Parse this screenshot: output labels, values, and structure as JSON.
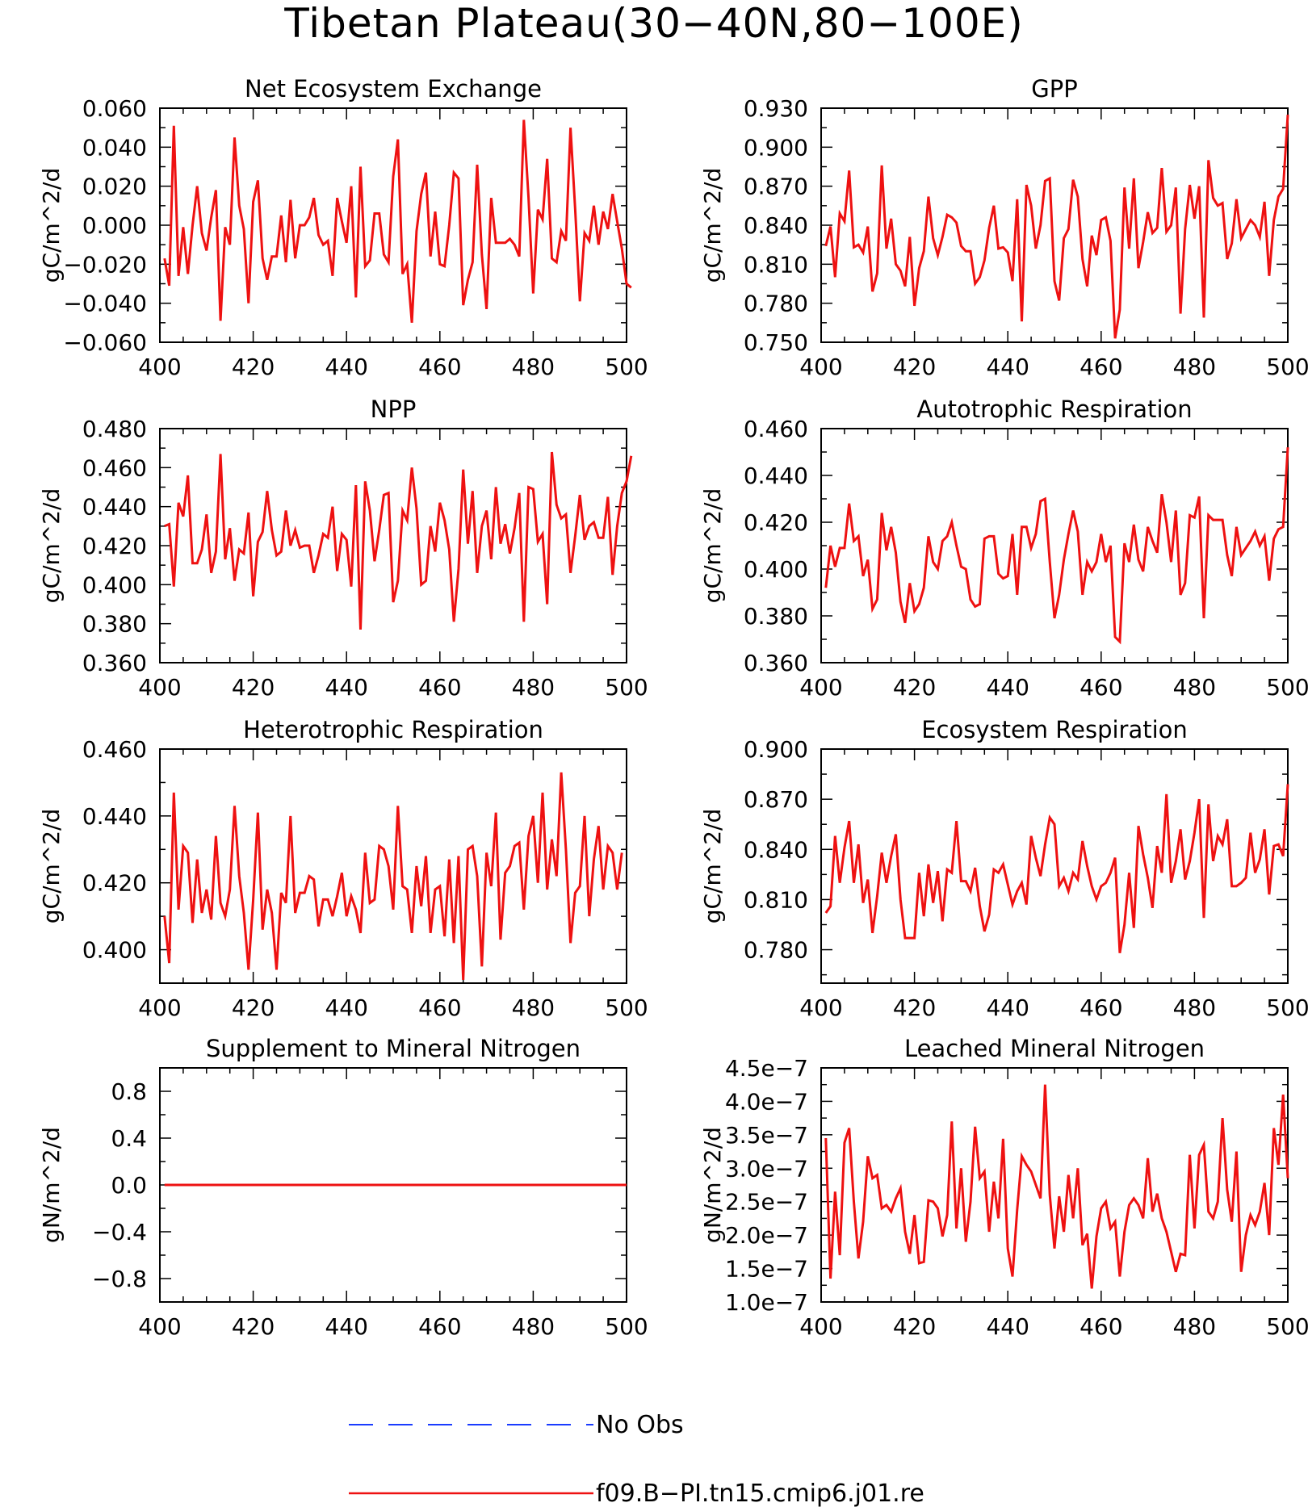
{
  "figure": {
    "title": "Tibetan Plateau(30−40N,80−100E)"
  },
  "legend": [
    {
      "label": "No Obs",
      "color": "#1a3cff",
      "style": "dashed"
    },
    {
      "label": "f09.B−PI.tn15.cmip6.j01.re",
      "color": "#ee1111",
      "style": "solid"
    }
  ],
  "chart_data": [
    {
      "type": "line",
      "title": "Net Ecosystem Exchange",
      "ylabel": "gC/m^2/d",
      "xlim": [
        400,
        500
      ],
      "ylim": [
        -0.06,
        0.06
      ],
      "xticks": [
        "400",
        "420",
        "440",
        "460",
        "480",
        "500"
      ],
      "yticks": [
        "−0.060",
        "−0.040",
        "−0.020",
        "0.000",
        "0.020",
        "0.040",
        "0.060"
      ],
      "x_start": 401,
      "series": [
        {
          "color": "#ee1111",
          "values": [
            -0.017,
            -0.031,
            0.051,
            -0.026,
            -0.001,
            -0.025,
            0.0,
            0.02,
            -0.004,
            -0.013,
            0.004,
            0.018,
            -0.049,
            -0.001,
            -0.01,
            0.045,
            0.01,
            -0.002,
            -0.04,
            0.012,
            0.023,
            -0.017,
            -0.028,
            -0.016,
            -0.016,
            0.005,
            -0.019,
            0.013,
            -0.017,
            0.0,
            0.0,
            0.004,
            0.014,
            -0.005,
            -0.01,
            -0.008,
            -0.026,
            0.014,
            0.002,
            -0.009,
            0.02,
            -0.037,
            0.03,
            -0.021,
            -0.018,
            0.006,
            0.006,
            -0.015,
            -0.019,
            0.025,
            0.044,
            -0.025,
            -0.02,
            -0.05,
            -0.003,
            0.016,
            0.027,
            -0.016,
            0.007,
            -0.02,
            -0.021,
            0.0,
            0.027,
            0.024,
            -0.041,
            -0.028,
            -0.019,
            0.031,
            -0.015,
            -0.043,
            0.014,
            -0.009,
            -0.009,
            -0.009,
            -0.007,
            -0.01,
            -0.016,
            0.054,
            0.014,
            -0.035,
            0.008,
            0.003,
            0.034,
            -0.017,
            -0.019,
            -0.003,
            -0.008,
            0.05,
            0.008,
            -0.039,
            -0.004,
            -0.008,
            0.01,
            -0.01,
            0.007,
            -0.002,
            0.016,
            0.002,
            -0.012,
            -0.03,
            -0.032
          ]
        }
      ]
    },
    {
      "type": "line",
      "title": "GPP",
      "ylabel": "gC/m^2/d",
      "xlim": [
        400,
        500
      ],
      "ylim": [
        0.75,
        0.93
      ],
      "xticks": [
        "400",
        "420",
        "440",
        "460",
        "480",
        "500"
      ],
      "yticks": [
        "0.750",
        "0.780",
        "0.810",
        "0.840",
        "0.870",
        "0.900",
        "0.930"
      ],
      "x_start": 401,
      "series": [
        {
          "color": "#ee1111",
          "values": [
            0.824,
            0.839,
            0.8,
            0.849,
            0.843,
            0.882,
            0.823,
            0.825,
            0.819,
            0.839,
            0.789,
            0.803,
            0.886,
            0.822,
            0.845,
            0.81,
            0.805,
            0.793,
            0.831,
            0.778,
            0.807,
            0.82,
            0.862,
            0.83,
            0.817,
            0.831,
            0.848,
            0.846,
            0.842,
            0.824,
            0.82,
            0.82,
            0.795,
            0.8,
            0.813,
            0.838,
            0.855,
            0.822,
            0.823,
            0.819,
            0.797,
            0.86,
            0.766,
            0.871,
            0.855,
            0.822,
            0.84,
            0.874,
            0.876,
            0.797,
            0.782,
            0.83,
            0.837,
            0.875,
            0.862,
            0.814,
            0.793,
            0.832,
            0.817,
            0.844,
            0.846,
            0.828,
            0.753,
            0.775,
            0.869,
            0.822,
            0.876,
            0.807,
            0.827,
            0.85,
            0.834,
            0.838,
            0.884,
            0.835,
            0.84,
            0.869,
            0.772,
            0.837,
            0.871,
            0.845,
            0.87,
            0.769,
            0.89,
            0.861,
            0.855,
            0.857,
            0.814,
            0.826,
            0.86,
            0.83,
            0.837,
            0.844,
            0.84,
            0.831,
            0.858,
            0.801,
            0.844,
            0.862,
            0.868,
            0.925
          ]
        }
      ]
    },
    {
      "type": "line",
      "title": "NPP",
      "ylabel": "gC/m^2/d",
      "xlim": [
        400,
        500
      ],
      "ylim": [
        0.36,
        0.48
      ],
      "xticks": [
        "400",
        "420",
        "440",
        "460",
        "480",
        "500"
      ],
      "yticks": [
        "0.360",
        "0.380",
        "0.400",
        "0.420",
        "0.440",
        "0.460",
        "0.480"
      ],
      "x_start": 401,
      "series": [
        {
          "color": "#ee1111",
          "values": [
            0.43,
            0.431,
            0.399,
            0.442,
            0.435,
            0.456,
            0.411,
            0.411,
            0.418,
            0.436,
            0.406,
            0.417,
            0.467,
            0.413,
            0.429,
            0.402,
            0.418,
            0.416,
            0.437,
            0.394,
            0.422,
            0.427,
            0.448,
            0.428,
            0.415,
            0.417,
            0.438,
            0.42,
            0.428,
            0.419,
            0.42,
            0.42,
            0.406,
            0.415,
            0.426,
            0.424,
            0.44,
            0.407,
            0.426,
            0.423,
            0.399,
            0.451,
            0.377,
            0.453,
            0.438,
            0.412,
            0.428,
            0.446,
            0.447,
            0.391,
            0.402,
            0.438,
            0.433,
            0.46,
            0.439,
            0.4,
            0.402,
            0.43,
            0.417,
            0.442,
            0.433,
            0.418,
            0.381,
            0.408,
            0.459,
            0.421,
            0.448,
            0.406,
            0.43,
            0.438,
            0.413,
            0.45,
            0.421,
            0.431,
            0.416,
            0.429,
            0.447,
            0.381,
            0.45,
            0.449,
            0.422,
            0.426,
            0.39,
            0.468,
            0.441,
            0.434,
            0.436,
            0.406,
            0.425,
            0.446,
            0.423,
            0.43,
            0.432,
            0.424,
            0.424,
            0.445,
            0.405,
            0.43,
            0.447,
            0.453,
            0.466
          ]
        }
      ]
    },
    {
      "type": "line",
      "title": "Autotrophic Respiration",
      "ylabel": "gC/m^2/d",
      "xlim": [
        400,
        500
      ],
      "ylim": [
        0.36,
        0.46
      ],
      "xticks": [
        "400",
        "420",
        "440",
        "460",
        "480",
        "500"
      ],
      "yticks": [
        "0.360",
        "0.380",
        "0.400",
        "0.420",
        "0.440",
        "0.460"
      ],
      "x_start": 401,
      "series": [
        {
          "color": "#ee1111",
          "values": [
            0.392,
            0.41,
            0.401,
            0.409,
            0.409,
            0.428,
            0.412,
            0.414,
            0.397,
            0.404,
            0.383,
            0.387,
            0.424,
            0.408,
            0.418,
            0.407,
            0.386,
            0.377,
            0.394,
            0.382,
            0.385,
            0.392,
            0.414,
            0.403,
            0.4,
            0.412,
            0.414,
            0.42,
            0.41,
            0.401,
            0.4,
            0.387,
            0.384,
            0.385,
            0.413,
            0.414,
            0.414,
            0.398,
            0.396,
            0.397,
            0.415,
            0.389,
            0.418,
            0.418,
            0.409,
            0.415,
            0.429,
            0.43,
            0.403,
            0.379,
            0.389,
            0.404,
            0.415,
            0.425,
            0.416,
            0.389,
            0.403,
            0.399,
            0.403,
            0.415,
            0.403,
            0.41,
            0.371,
            0.369,
            0.411,
            0.403,
            0.419,
            0.404,
            0.399,
            0.418,
            0.412,
            0.407,
            0.432,
            0.42,
            0.403,
            0.425,
            0.389,
            0.394,
            0.423,
            0.422,
            0.431,
            0.379,
            0.423,
            0.421,
            0.421,
            0.421,
            0.406,
            0.397,
            0.418,
            0.406,
            0.409,
            0.412,
            0.416,
            0.41,
            0.414,
            0.395,
            0.413,
            0.417,
            0.418,
            0.452
          ]
        }
      ]
    },
    {
      "type": "line",
      "title": "Heterotrophic Respiration",
      "ylabel": "gC/m^2/d",
      "xlim": [
        400,
        500
      ],
      "ylim": [
        0.39,
        0.46
      ],
      "xticks": [
        "400",
        "420",
        "440",
        "460",
        "480",
        "500"
      ],
      "yticks": [
        "0.400",
        "0.420",
        "0.440",
        "0.460"
      ],
      "x_start": 401,
      "series": [
        {
          "color": "#ee1111",
          "values": [
            0.41,
            0.396,
            0.447,
            0.412,
            0.431,
            0.429,
            0.408,
            0.427,
            0.411,
            0.418,
            0.409,
            0.434,
            0.414,
            0.41,
            0.418,
            0.443,
            0.422,
            0.411,
            0.394,
            0.415,
            0.441,
            0.406,
            0.418,
            0.411,
            0.394,
            0.417,
            0.414,
            0.44,
            0.411,
            0.417,
            0.417,
            0.422,
            0.421,
            0.407,
            0.415,
            0.415,
            0.41,
            0.416,
            0.423,
            0.41,
            0.416,
            0.412,
            0.405,
            0.429,
            0.414,
            0.415,
            0.431,
            0.43,
            0.425,
            0.412,
            0.443,
            0.419,
            0.418,
            0.405,
            0.425,
            0.413,
            0.428,
            0.405,
            0.418,
            0.419,
            0.404,
            0.427,
            0.402,
            0.428,
            0.391,
            0.43,
            0.431,
            0.422,
            0.395,
            0.429,
            0.419,
            0.441,
            0.403,
            0.423,
            0.425,
            0.431,
            0.432,
            0.412,
            0.434,
            0.44,
            0.42,
            0.447,
            0.418,
            0.433,
            0.422,
            0.453,
            0.43,
            0.402,
            0.417,
            0.419,
            0.44,
            0.41,
            0.427,
            0.437,
            0.418,
            0.431,
            0.429,
            0.418,
            0.429
          ]
        }
      ]
    },
    {
      "type": "line",
      "title": "Ecosystem Respiration",
      "ylabel": "gC/m^2/d",
      "xlim": [
        400,
        500
      ],
      "ylim": [
        0.76,
        0.9
      ],
      "xticks": [
        "400",
        "420",
        "440",
        "460",
        "480",
        "500"
      ],
      "yticks": [
        "0.780",
        "0.810",
        "0.840",
        "0.870",
        "0.900"
      ],
      "x_start": 401,
      "series": [
        {
          "color": "#ee1111",
          "values": [
            0.802,
            0.806,
            0.848,
            0.82,
            0.841,
            0.857,
            0.82,
            0.843,
            0.808,
            0.822,
            0.79,
            0.812,
            0.838,
            0.82,
            0.836,
            0.849,
            0.81,
            0.787,
            0.787,
            0.787,
            0.826,
            0.8,
            0.831,
            0.808,
            0.827,
            0.797,
            0.828,
            0.826,
            0.857,
            0.821,
            0.821,
            0.815,
            0.829,
            0.806,
            0.791,
            0.801,
            0.828,
            0.826,
            0.831,
            0.819,
            0.807,
            0.815,
            0.82,
            0.807,
            0.848,
            0.835,
            0.824,
            0.843,
            0.859,
            0.855,
            0.818,
            0.823,
            0.815,
            0.826,
            0.822,
            0.845,
            0.83,
            0.818,
            0.81,
            0.818,
            0.82,
            0.826,
            0.835,
            0.778,
            0.795,
            0.826,
            0.793,
            0.854,
            0.837,
            0.823,
            0.805,
            0.842,
            0.826,
            0.873,
            0.82,
            0.833,
            0.852,
            0.822,
            0.833,
            0.85,
            0.87,
            0.799,
            0.867,
            0.833,
            0.848,
            0.843,
            0.858,
            0.818,
            0.818,
            0.82,
            0.823,
            0.85,
            0.826,
            0.834,
            0.852,
            0.813,
            0.842,
            0.843,
            0.836,
            0.879
          ]
        }
      ]
    },
    {
      "type": "line",
      "title": "Supplement to Mineral Nitrogen",
      "ylabel": "gN/m^2/d",
      "xlim": [
        400,
        500
      ],
      "ylim": [
        -1.0,
        1.0
      ],
      "xticks": [
        "400",
        "420",
        "440",
        "460",
        "480",
        "500"
      ],
      "yticks": [
        "−0.8",
        "−0.4",
        "0.0",
        "0.4",
        "0.8"
      ],
      "x_start": 401,
      "series": [
        {
          "color": "#ee1111",
          "values": [
            0,
            0,
            0,
            0,
            0,
            0,
            0,
            0,
            0,
            0,
            0,
            0,
            0,
            0,
            0,
            0,
            0,
            0,
            0,
            0,
            0,
            0,
            0,
            0,
            0,
            0,
            0,
            0,
            0,
            0,
            0,
            0,
            0,
            0,
            0,
            0,
            0,
            0,
            0,
            0,
            0,
            0,
            0,
            0,
            0,
            0,
            0,
            0,
            0,
            0,
            0,
            0,
            0,
            0,
            0,
            0,
            0,
            0,
            0,
            0,
            0,
            0,
            0,
            0,
            0,
            0,
            0,
            0,
            0,
            0,
            0,
            0,
            0,
            0,
            0,
            0,
            0,
            0,
            0,
            0,
            0,
            0,
            0,
            0,
            0,
            0,
            0,
            0,
            0,
            0,
            0,
            0,
            0,
            0,
            0,
            0,
            0,
            0,
            0,
            0
          ]
        }
      ]
    },
    {
      "type": "line",
      "title": "Leached Mineral Nitrogen",
      "ylabel": "gN/m^2/d",
      "xlim": [
        400,
        500
      ],
      "ylim": [
        1e-07,
        4.5e-07
      ],
      "xticks": [
        "400",
        "420",
        "440",
        "460",
        "480",
        "500"
      ],
      "yticks": [
        "1.0e−7",
        "1.5e−7",
        "2.0e−7",
        "2.5e−7",
        "3.0e−7",
        "3.5e−7",
        "4.0e−7",
        "4.5e−7"
      ],
      "x_start": 401,
      "series": [
        {
          "color": "#ee1111",
          "values": [
            3.45e-07,
            1.35e-07,
            2.65e-07,
            1.7e-07,
            3.38e-07,
            3.6e-07,
            2.5e-07,
            1.65e-07,
            2.2e-07,
            3.18e-07,
            2.85e-07,
            2.9e-07,
            2.4e-07,
            2.45e-07,
            2.35e-07,
            2.55e-07,
            2.7e-07,
            2.05e-07,
            1.72e-07,
            2.3e-07,
            1.58e-07,
            1.6e-07,
            2.52e-07,
            2.5e-07,
            2.4e-07,
            1.98e-07,
            2.3e-07,
            3.7e-07,
            2.1e-07,
            3e-07,
            1.9e-07,
            2.5e-07,
            3.62e-07,
            2.85e-07,
            2.95e-07,
            2.05e-07,
            2.8e-07,
            2.25e-07,
            3.44e-07,
            1.8e-07,
            1.38e-07,
            2.38e-07,
            3.18e-07,
            3.05e-07,
            2.95e-07,
            2.75e-07,
            2.55e-07,
            4.25e-07,
            2.6e-07,
            1.8e-07,
            2.58e-07,
            2.05e-07,
            2.9e-07,
            2.25e-07,
            3e-07,
            1.85e-07,
            2.02e-07,
            1.2e-07,
            1.98e-07,
            2.4e-07,
            2.5e-07,
            2.1e-07,
            2.2e-07,
            1.38e-07,
            2.05e-07,
            2.45e-07,
            2.55e-07,
            2.45e-07,
            2.25e-07,
            3.15e-07,
            2.35e-07,
            2.62e-07,
            2.25e-07,
            2.05e-07,
            1.75e-07,
            1.45e-07,
            1.72e-07,
            1.7e-07,
            3.2e-07,
            2.1e-07,
            3.2e-07,
            3.35e-07,
            2.35e-07,
            2.25e-07,
            2.5e-07,
            3.75e-07,
            2.68e-07,
            2.2e-07,
            3.25e-07,
            1.45e-07,
            2e-07,
            2.3e-07,
            2.15e-07,
            2.35e-07,
            2.78e-07,
            2e-07,
            3.6e-07,
            3.05e-07,
            4.1e-07,
            2.85e-07
          ]
        }
      ]
    }
  ]
}
